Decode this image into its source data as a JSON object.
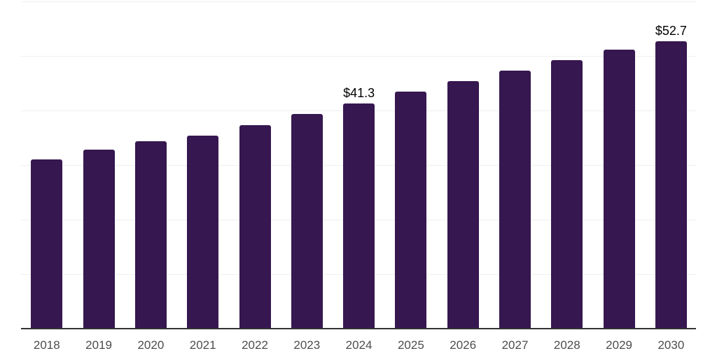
{
  "chart_data": {
    "type": "bar",
    "categories": [
      "2018",
      "2019",
      "2020",
      "2021",
      "2022",
      "2023",
      "2024",
      "2025",
      "2026",
      "2027",
      "2028",
      "2029",
      "2030"
    ],
    "values": [
      31.0,
      32.8,
      34.4,
      35.4,
      37.3,
      39.4,
      41.3,
      43.5,
      45.4,
      47.3,
      49.2,
      51.1,
      52.7
    ],
    "data_labels": [
      {
        "category": "2024",
        "text": "$41.3"
      },
      {
        "category": "2030",
        "text": "$52.7"
      }
    ],
    "title": "",
    "xlabel": "",
    "ylabel": "",
    "ylim": [
      0,
      60
    ],
    "grid_step": 10,
    "grid": "horizontal",
    "legend": "none",
    "colors": {
      "bar": "#361750",
      "gridline": "#efefef",
      "axis_line": "#333333",
      "tick_label": "#4d4d4d",
      "data_label": "#000000",
      "background": "#ffffff"
    }
  }
}
